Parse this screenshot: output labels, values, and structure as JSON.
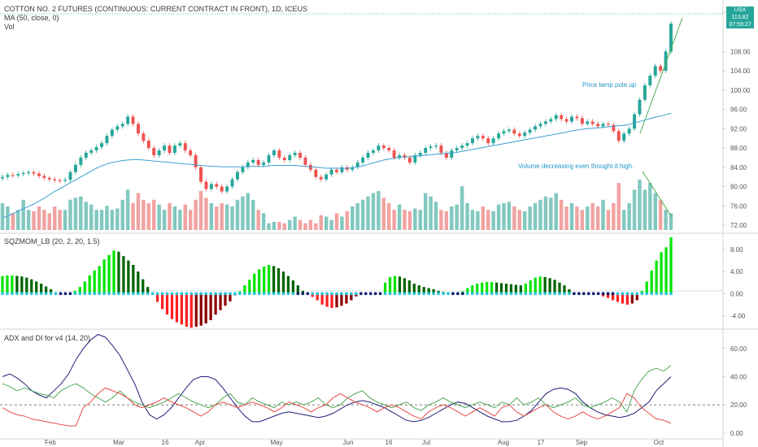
{
  "legend": {
    "title": "COTTON NO. 2 FUTURES (CONTINUOUS: CURRENT CONTRACT IN FRONT), 1D, ICEUS",
    "ma": "MA (50, close, 0)",
    "vol": "Vol"
  },
  "price_tag": {
    "currency": "USX",
    "value": "113.82",
    "countdown": "07:59:27"
  },
  "colors": {
    "up": "#26a69a",
    "down": "#ef5350",
    "ma": "#3b9fd1",
    "adx": "#1f1f7a",
    "di_plus": "#43a047",
    "di_minus": "#e53935"
  },
  "chart_data": [
    {
      "type": "candlestick",
      "pane": "price",
      "ylim": [
        71,
        117
      ],
      "y_ticks": [
        "116.00",
        "108.00",
        "104.00",
        "100.00",
        "96.00",
        "92.00",
        "88.00",
        "84.00",
        "80.00",
        "76.00",
        "72.00"
      ],
      "x_labels": [
        "Feb",
        "Mar",
        "16",
        "Apr",
        "May",
        "Jun",
        "16",
        "Jul",
        "Aug",
        "17",
        "Sep",
        "Oct"
      ],
      "annotations": [
        "Price lamp pole up",
        "Volume decreasing even thought it high."
      ],
      "closes": [
        82.0,
        82.4,
        82.3,
        82.6,
        82.8,
        83.0,
        82.7,
        82.2,
        81.8,
        81.5,
        81.3,
        81.2,
        81.4,
        83.0,
        84.5,
        86.0,
        87.0,
        87.5,
        88.2,
        89.0,
        90.5,
        91.8,
        92.5,
        93.0,
        94.5,
        93.0,
        91.0,
        89.5,
        88.0,
        86.5,
        87.5,
        88.5,
        87.0,
        88.5,
        89.0,
        87.5,
        86.5,
        84.0,
        81.0,
        79.5,
        80.5,
        80.0,
        79.0,
        80.0,
        81.5,
        83.0,
        84.0,
        85.0,
        85.5,
        84.5,
        85.0,
        86.5,
        87.5,
        86.0,
        85.5,
        86.5,
        87.0,
        86.0,
        84.5,
        83.5,
        82.0,
        81.5,
        82.5,
        83.5,
        83.0,
        84.0,
        83.5,
        84.0,
        85.0,
        86.0,
        87.0,
        87.5,
        88.5,
        88.0,
        87.5,
        86.0,
        86.5,
        86.0,
        85.0,
        86.5,
        87.0,
        88.0,
        88.3,
        88.5,
        87.0,
        86.0,
        87.5,
        88.0,
        88.5,
        89.0,
        90.0,
        90.5,
        90.0,
        89.0,
        90.0,
        91.0,
        91.5,
        91.8,
        91.0,
        90.5,
        91.2,
        91.8,
        92.5,
        93.0,
        93.5,
        94.0,
        94.8,
        94.0,
        93.5,
        94.5,
        94.2,
        93.0,
        93.5,
        93.0,
        92.5,
        93.0,
        92.8,
        91.5,
        89.5,
        91.0,
        92.0,
        95.0,
        98.0,
        101.0,
        103.0,
        105.0,
        104.0,
        108.0,
        113.8
      ],
      "ma": [
        73.5,
        73.9,
        74.4,
        74.9,
        75.4,
        75.9,
        76.4,
        77.0,
        77.6,
        78.3,
        79.0,
        79.6,
        80.2,
        80.8,
        81.4,
        82.0,
        82.6,
        83.2,
        83.8,
        84.3,
        84.7,
        85.0,
        85.2,
        85.4,
        85.5,
        85.6,
        85.6,
        85.5,
        85.4,
        85.3,
        85.2,
        85.1,
        85.0,
        84.9,
        84.8,
        84.7,
        84.6,
        84.5,
        84.4,
        84.3,
        84.2,
        84.2,
        84.1,
        84.1,
        84.1,
        84.1,
        84.1,
        84.2,
        84.2,
        84.2,
        84.2,
        84.3,
        84.4,
        84.4,
        84.4,
        84.4,
        84.4,
        84.3,
        84.2,
        84.1,
        84.0,
        83.9,
        83.8,
        83.8,
        83.8,
        83.8,
        83.8,
        83.9,
        84.1,
        84.3,
        84.6,
        84.9,
        85.2,
        85.5,
        85.7,
        85.9,
        86.0,
        86.1,
        86.2,
        86.3,
        86.4,
        86.5,
        86.6,
        86.7,
        86.8,
        86.9,
        87.0,
        87.1,
        87.3,
        87.5,
        87.7,
        87.9,
        88.1,
        88.3,
        88.5,
        88.7,
        88.9,
        89.1,
        89.3,
        89.5,
        89.7,
        89.9,
        90.1,
        90.3,
        90.5,
        90.7,
        90.9,
        91.1,
        91.3,
        91.5,
        91.7,
        91.9,
        92.0,
        92.1,
        92.2,
        92.3,
        92.4,
        92.5,
        92.6,
        92.7,
        92.9,
        93.2,
        93.5,
        93.8,
        94.1,
        94.4,
        94.6,
        94.9,
        95.2
      ]
    },
    {
      "type": "bar",
      "pane": "volume",
      "name": "Vol",
      "values": [
        40,
        35,
        25,
        30,
        45,
        30,
        28,
        35,
        30,
        25,
        35,
        30,
        30,
        45,
        48,
        50,
        42,
        38,
        30,
        30,
        36,
        30,
        32,
        45,
        60,
        40,
        55,
        45,
        40,
        45,
        38,
        30,
        40,
        35,
        30,
        38,
        30,
        45,
        58,
        48,
        40,
        35,
        40,
        38,
        35,
        45,
        50,
        55,
        45,
        30,
        25,
        10,
        12,
        12,
        10,
        15,
        20,
        15,
        10,
        15,
        10,
        22,
        20,
        15,
        25,
        20,
        28,
        35,
        40,
        45,
        50,
        55,
        58,
        48,
        40,
        30,
        38,
        30,
        28,
        32,
        30,
        55,
        50,
        42,
        30,
        28,
        35,
        38,
        65,
        40,
        30,
        28,
        35,
        30,
        28,
        38,
        40,
        42,
        35,
        30,
        28,
        35,
        40,
        45,
        50,
        48,
        55,
        45,
        35,
        40,
        35,
        30,
        35,
        40,
        35,
        45,
        30,
        40,
        70,
        30,
        40,
        60,
        75,
        60,
        70,
        55,
        45,
        30,
        25
      ]
    },
    {
      "type": "bar",
      "pane": "oscillator",
      "title": "SQZMOM_LB (20, 2, 20, 1.5)",
      "ylim": [
        -6,
        10.5
      ],
      "y_ticks": [
        "8.00",
        "4.00",
        "0.00",
        "-4.00"
      ],
      "values": [
        3.2,
        3.3,
        3.3,
        3.2,
        3.1,
        2.9,
        2.6,
        2.2,
        1.8,
        1.3,
        0.8,
        0.2,
        -0.2,
        -0.1,
        0.0,
        0.5,
        1.2,
        2.2,
        3.3,
        4.2,
        5.0,
        6.2,
        7.0,
        7.8,
        7.6,
        6.8,
        6.0,
        5.2,
        4.0,
        2.6,
        1.2,
        -0.2,
        -1.5,
        -2.8,
        -3.8,
        -4.6,
        -5.2,
        -5.6,
        -6.0,
        -6.2,
        -6.0,
        -5.8,
        -5.4,
        -4.8,
        -3.8,
        -3.0,
        -2.2,
        -1.4,
        -0.3,
        0.4,
        1.5,
        2.5,
        3.6,
        4.4,
        4.9,
        5.2,
        5.0,
        4.6,
        4.0,
        3.2,
        2.4,
        1.5,
        0.5,
        0.0,
        -0.6,
        -1.2,
        -2.0,
        -2.4,
        -2.6,
        -2.5,
        -2.2,
        -1.8,
        -1.2,
        -0.5,
        0.0,
        0.0,
        0.0,
        0.0,
        0.0,
        2.0,
        3.0,
        3.2,
        3.1,
        2.8,
        2.4,
        1.8,
        1.5,
        1.2,
        1.0,
        0.8,
        0.5,
        0.3,
        0.2,
        0.1,
        0.0,
        0.4,
        1.0,
        1.5,
        1.8,
        2.0,
        2.1,
        2.1,
        2.0,
        1.9,
        1.8,
        1.7,
        1.6,
        1.5,
        1.8,
        2.4,
        2.9,
        3.1,
        3.0,
        2.8,
        2.5,
        2.0,
        1.5,
        0.8,
        0.2,
        0.0,
        0.0,
        0.0,
        0.0,
        0.0,
        -0.5,
        -0.8,
        -1.2,
        -1.5,
        -1.8,
        -2.0,
        -1.8,
        -1.2,
        0.5,
        2.2,
        4.2,
        6.0,
        7.5,
        8.4,
        10.2
      ]
    },
    {
      "type": "line",
      "pane": "adx",
      "title": "ADX and DI for v4 (14, 20)",
      "ylim": [
        -3,
        72
      ],
      "y_ticks": [
        "60.00",
        "40.00",
        "20.00",
        "0.00"
      ],
      "threshold": 20,
      "series": [
        {
          "values": [
            40,
            42,
            39,
            35,
            30,
            27,
            25,
            30,
            35,
            42,
            52,
            60,
            66,
            70,
            68,
            62,
            55,
            45,
            35,
            22,
            13,
            10,
            13,
            18,
            25,
            32,
            38,
            40,
            40,
            38,
            32,
            25,
            18,
            12,
            8,
            8,
            10,
            12,
            14,
            15,
            14,
            13,
            12,
            11,
            12,
            14,
            17,
            20,
            22,
            23,
            22,
            20,
            18,
            15,
            12,
            9,
            8,
            9,
            11,
            14,
            17,
            20,
            22,
            21,
            18,
            15,
            12,
            10,
            8,
            8,
            9,
            12,
            16,
            22,
            28,
            31,
            32,
            31,
            28,
            22,
            18,
            15,
            13,
            12,
            11,
            12,
            14,
            18,
            22,
            30,
            35,
            40
          ]
        },
        {
          "values": [
            35,
            33,
            30,
            32,
            30,
            28,
            27,
            25,
            30,
            33,
            35,
            32,
            28,
            25,
            22,
            25,
            30,
            25,
            22,
            20,
            18,
            20,
            22,
            25,
            28,
            25,
            22,
            20,
            18,
            20,
            25,
            28,
            22,
            20,
            25,
            22,
            20,
            18,
            22,
            20,
            22,
            20,
            22,
            25,
            20,
            18,
            20,
            25,
            28,
            30,
            25,
            22,
            20,
            18,
            20,
            22,
            18,
            16,
            20,
            22,
            25,
            22,
            20,
            18,
            20,
            22,
            20,
            18,
            22,
            20,
            25,
            20,
            22,
            25,
            20,
            18,
            20,
            22,
            25,
            20,
            18,
            20,
            22,
            25,
            22,
            15,
            30,
            38,
            44,
            46,
            44,
            48
          ]
        },
        {
          "values": [
            18,
            15,
            13,
            12,
            10,
            9,
            8,
            7,
            6,
            5,
            5,
            18,
            22,
            28,
            32,
            30,
            28,
            25,
            20,
            18,
            20,
            22,
            25,
            22,
            20,
            18,
            15,
            12,
            15,
            20,
            22,
            20,
            18,
            20,
            22,
            20,
            18,
            15,
            18,
            22,
            20,
            18,
            15,
            18,
            20,
            25,
            28,
            25,
            22,
            20,
            18,
            15,
            18,
            20,
            18,
            15,
            12,
            10,
            15,
            18,
            20,
            18,
            15,
            12,
            15,
            18,
            15,
            12,
            18,
            20,
            15,
            12,
            15,
            18,
            20,
            15,
            12,
            10,
            12,
            15,
            12,
            10,
            12,
            15,
            18,
            28,
            25,
            18,
            14,
            10,
            9,
            7
          ]
        }
      ]
    }
  ]
}
